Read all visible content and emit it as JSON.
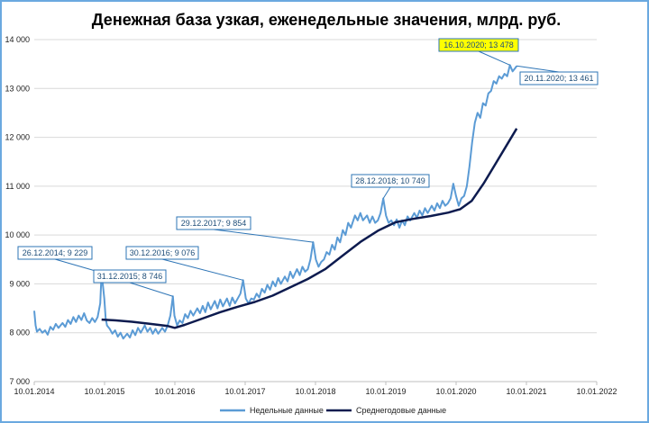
{
  "chart_data": {
    "type": "line",
    "title": "Денежная база узкая, еженедельные значения, млрд. руб.",
    "xlabel": "",
    "ylabel": "",
    "ylim": [
      7000,
      14000
    ],
    "y_ticks": [
      "7 000",
      "8 000",
      "9 000",
      "10 000",
      "11 000",
      "12 000",
      "13 000",
      "14 000"
    ],
    "x_ticks": [
      "10.01.2014",
      "10.01.2015",
      "10.01.2016",
      "10.01.2017",
      "10.01.2018",
      "10.01.2019",
      "10.01.2020",
      "10.01.2021",
      "10.01.2022"
    ],
    "grid": "horizontal",
    "legend": "bottom",
    "colors": {
      "weekly": "#5b9bd5",
      "average": "#0d1b4f",
      "highlight": "#ffff00",
      "annotation": "#2e75b6"
    },
    "series": [
      {
        "name": "Недельные данные",
        "points": [
          [
            "2014-01-10",
            8450
          ],
          [
            "2014-01-17",
            8150
          ],
          [
            "2014-01-24",
            8020
          ],
          [
            "2014-02-07",
            8080
          ],
          [
            "2014-02-21",
            8000
          ],
          [
            "2014-03-07",
            8050
          ],
          [
            "2014-03-21",
            7960
          ],
          [
            "2014-04-04",
            8120
          ],
          [
            "2014-04-18",
            8060
          ],
          [
            "2014-05-02",
            8180
          ],
          [
            "2014-05-16",
            8100
          ],
          [
            "2014-06-06",
            8200
          ],
          [
            "2014-06-20",
            8120
          ],
          [
            "2014-07-04",
            8260
          ],
          [
            "2014-07-18",
            8180
          ],
          [
            "2014-08-01",
            8320
          ],
          [
            "2014-08-15",
            8220
          ],
          [
            "2014-08-29",
            8350
          ],
          [
            "2014-09-12",
            8260
          ],
          [
            "2014-09-26",
            8400
          ],
          [
            "2014-10-10",
            8250
          ],
          [
            "2014-10-24",
            8200
          ],
          [
            "2014-11-07",
            8300
          ],
          [
            "2014-11-21",
            8220
          ],
          [
            "2014-12-05",
            8320
          ],
          [
            "2014-12-19",
            8600
          ],
          [
            "2014-12-26",
            9229
          ],
          [
            "2015-01-09",
            8700
          ],
          [
            "2015-01-16",
            8300
          ],
          [
            "2015-01-23",
            8150
          ],
          [
            "2015-02-06",
            8080
          ],
          [
            "2015-02-20",
            7980
          ],
          [
            "2015-03-06",
            8050
          ],
          [
            "2015-03-20",
            7920
          ],
          [
            "2015-04-03",
            8000
          ],
          [
            "2015-04-17",
            7880
          ],
          [
            "2015-05-08",
            7980
          ],
          [
            "2015-05-22",
            7900
          ],
          [
            "2015-06-05",
            8050
          ],
          [
            "2015-06-19",
            7950
          ],
          [
            "2015-07-03",
            8100
          ],
          [
            "2015-07-17",
            8000
          ],
          [
            "2015-08-07",
            8150
          ],
          [
            "2015-08-21",
            8020
          ],
          [
            "2015-09-04",
            8100
          ],
          [
            "2015-09-18",
            7980
          ],
          [
            "2015-10-02",
            8080
          ],
          [
            "2015-10-16",
            7980
          ],
          [
            "2015-11-06",
            8100
          ],
          [
            "2015-11-20",
            8020
          ],
          [
            "2015-12-04",
            8150
          ],
          [
            "2015-12-18",
            8350
          ],
          [
            "2015-12-31",
            8746
          ],
          [
            "2016-01-08",
            8350
          ],
          [
            "2016-01-22",
            8150
          ],
          [
            "2016-02-05",
            8250
          ],
          [
            "2016-02-19",
            8200
          ],
          [
            "2016-03-04",
            8380
          ],
          [
            "2016-03-18",
            8300
          ],
          [
            "2016-04-01",
            8450
          ],
          [
            "2016-04-15",
            8350
          ],
          [
            "2016-05-06",
            8500
          ],
          [
            "2016-05-20",
            8400
          ],
          [
            "2016-06-03",
            8550
          ],
          [
            "2016-06-17",
            8420
          ],
          [
            "2016-07-01",
            8620
          ],
          [
            "2016-07-15",
            8480
          ],
          [
            "2016-08-05",
            8650
          ],
          [
            "2016-08-19",
            8500
          ],
          [
            "2016-09-02",
            8680
          ],
          [
            "2016-09-16",
            8540
          ],
          [
            "2016-10-07",
            8700
          ],
          [
            "2016-10-21",
            8550
          ],
          [
            "2016-11-04",
            8720
          ],
          [
            "2016-11-18",
            8600
          ],
          [
            "2016-12-02",
            8700
          ],
          [
            "2016-12-16",
            8800
          ],
          [
            "2016-12-30",
            9076
          ],
          [
            "2017-01-13",
            8700
          ],
          [
            "2017-01-27",
            8600
          ],
          [
            "2017-02-10",
            8700
          ],
          [
            "2017-02-24",
            8680
          ],
          [
            "2017-03-10",
            8800
          ],
          [
            "2017-03-24",
            8720
          ],
          [
            "2017-04-07",
            8900
          ],
          [
            "2017-04-21",
            8820
          ],
          [
            "2017-05-05",
            8980
          ],
          [
            "2017-05-19",
            8880
          ],
          [
            "2017-06-02",
            9050
          ],
          [
            "2017-06-16",
            8950
          ],
          [
            "2017-06-30",
            9120
          ],
          [
            "2017-07-14",
            9000
          ],
          [
            "2017-08-04",
            9150
          ],
          [
            "2017-08-18",
            9050
          ],
          [
            "2017-09-01",
            9250
          ],
          [
            "2017-09-15",
            9120
          ],
          [
            "2017-10-06",
            9300
          ],
          [
            "2017-10-20",
            9180
          ],
          [
            "2017-11-03",
            9350
          ],
          [
            "2017-11-17",
            9250
          ],
          [
            "2017-12-01",
            9300
          ],
          [
            "2017-12-15",
            9500
          ],
          [
            "2017-12-29",
            9854
          ],
          [
            "2018-01-12",
            9500
          ],
          [
            "2018-01-26",
            9350
          ],
          [
            "2018-02-09",
            9450
          ],
          [
            "2018-02-23",
            9500
          ],
          [
            "2018-03-09",
            9650
          ],
          [
            "2018-03-23",
            9600
          ],
          [
            "2018-04-06",
            9800
          ],
          [
            "2018-04-20",
            9700
          ],
          [
            "2018-05-04",
            9950
          ],
          [
            "2018-05-18",
            9850
          ],
          [
            "2018-06-01",
            10100
          ],
          [
            "2018-06-15",
            10000
          ],
          [
            "2018-06-29",
            10250
          ],
          [
            "2018-07-13",
            10150
          ],
          [
            "2018-08-03",
            10400
          ],
          [
            "2018-08-17",
            10300
          ],
          [
            "2018-08-31",
            10450
          ],
          [
            "2018-09-14",
            10300
          ],
          [
            "2018-10-05",
            10400
          ],
          [
            "2018-10-19",
            10250
          ],
          [
            "2018-11-02",
            10380
          ],
          [
            "2018-11-16",
            10250
          ],
          [
            "2018-11-30",
            10300
          ],
          [
            "2018-12-14",
            10450
          ],
          [
            "2018-12-28",
            10749
          ],
          [
            "2019-01-11",
            10400
          ],
          [
            "2019-01-25",
            10250
          ],
          [
            "2019-02-08",
            10300
          ],
          [
            "2019-02-22",
            10200
          ],
          [
            "2019-03-08",
            10320
          ],
          [
            "2019-03-22",
            10150
          ],
          [
            "2019-04-05",
            10300
          ],
          [
            "2019-04-19",
            10200
          ],
          [
            "2019-05-03",
            10380
          ],
          [
            "2019-05-17",
            10300
          ],
          [
            "2019-06-07",
            10450
          ],
          [
            "2019-06-21",
            10350
          ],
          [
            "2019-07-05",
            10500
          ],
          [
            "2019-07-19",
            10400
          ],
          [
            "2019-08-02",
            10550
          ],
          [
            "2019-08-16",
            10450
          ],
          [
            "2019-09-06",
            10600
          ],
          [
            "2019-09-20",
            10500
          ],
          [
            "2019-10-04",
            10650
          ],
          [
            "2019-10-18",
            10550
          ],
          [
            "2019-11-01",
            10700
          ],
          [
            "2019-11-15",
            10600
          ],
          [
            "2019-11-29",
            10650
          ],
          [
            "2019-12-13",
            10750
          ],
          [
            "2019-12-27",
            11050
          ],
          [
            "2020-01-10",
            10800
          ],
          [
            "2020-01-24",
            10600
          ],
          [
            "2020-02-07",
            10750
          ],
          [
            "2020-02-21",
            10800
          ],
          [
            "2020-03-06",
            11000
          ],
          [
            "2020-03-20",
            11400
          ],
          [
            "2020-04-03",
            11900
          ],
          [
            "2020-04-17",
            12300
          ],
          [
            "2020-05-01",
            12500
          ],
          [
            "2020-05-15",
            12400
          ],
          [
            "2020-05-29",
            12700
          ],
          [
            "2020-06-12",
            12650
          ],
          [
            "2020-06-26",
            12900
          ],
          [
            "2020-07-10",
            12950
          ],
          [
            "2020-07-24",
            13150
          ],
          [
            "2020-08-07",
            13100
          ],
          [
            "2020-08-21",
            13250
          ],
          [
            "2020-09-04",
            13200
          ],
          [
            "2020-09-18",
            13300
          ],
          [
            "2020-10-02",
            13250
          ],
          [
            "2020-10-16",
            13478
          ],
          [
            "2020-10-30",
            13350
          ],
          [
            "2020-11-13",
            13420
          ],
          [
            "2020-11-20",
            13461
          ]
        ]
      },
      {
        "name": "Среднегодовые данные",
        "points": [
          [
            "2014-12-26",
            8270
          ],
          [
            "2015-03-01",
            8255
          ],
          [
            "2015-06-01",
            8225
          ],
          [
            "2015-09-01",
            8185
          ],
          [
            "2015-12-01",
            8140
          ],
          [
            "2016-01-10",
            8100
          ],
          [
            "2016-03-01",
            8160
          ],
          [
            "2016-06-01",
            8290
          ],
          [
            "2016-09-01",
            8420
          ],
          [
            "2016-12-01",
            8530
          ],
          [
            "2017-03-01",
            8630
          ],
          [
            "2017-06-01",
            8760
          ],
          [
            "2017-09-01",
            8930
          ],
          [
            "2017-12-01",
            9100
          ],
          [
            "2018-03-01",
            9300
          ],
          [
            "2018-06-01",
            9580
          ],
          [
            "2018-09-01",
            9860
          ],
          [
            "2018-12-01",
            10090
          ],
          [
            "2019-03-01",
            10260
          ],
          [
            "2019-06-01",
            10330
          ],
          [
            "2019-09-01",
            10390
          ],
          [
            "2019-12-01",
            10460
          ],
          [
            "2020-02-01",
            10530
          ],
          [
            "2020-04-01",
            10700
          ],
          [
            "2020-06-01",
            11050
          ],
          [
            "2020-08-01",
            11450
          ],
          [
            "2020-10-01",
            11850
          ],
          [
            "2020-11-20",
            12180
          ]
        ]
      }
    ],
    "annotations": [
      {
        "label": "26.12.2014; 9 229",
        "date": "2014-12-26",
        "value": 9229,
        "highlight": false
      },
      {
        "label": "31.12.2015; 8 746",
        "date": "2015-12-31",
        "value": 8746,
        "highlight": false
      },
      {
        "label": "30.12.2016; 9 076",
        "date": "2016-12-30",
        "value": 9076,
        "highlight": false
      },
      {
        "label": "29.12.2017; 9 854",
        "date": "2017-12-29",
        "value": 9854,
        "highlight": false
      },
      {
        "label": "28.12.2018; 10 749",
        "date": "2018-12-28",
        "value": 10749,
        "highlight": false
      },
      {
        "label": "16.10.2020; 13 478",
        "date": "2020-10-16",
        "value": 13478,
        "highlight": true
      },
      {
        "label": "20.11.2020; 13 461",
        "date": "2020-11-20",
        "value": 13461,
        "highlight": false
      }
    ]
  }
}
